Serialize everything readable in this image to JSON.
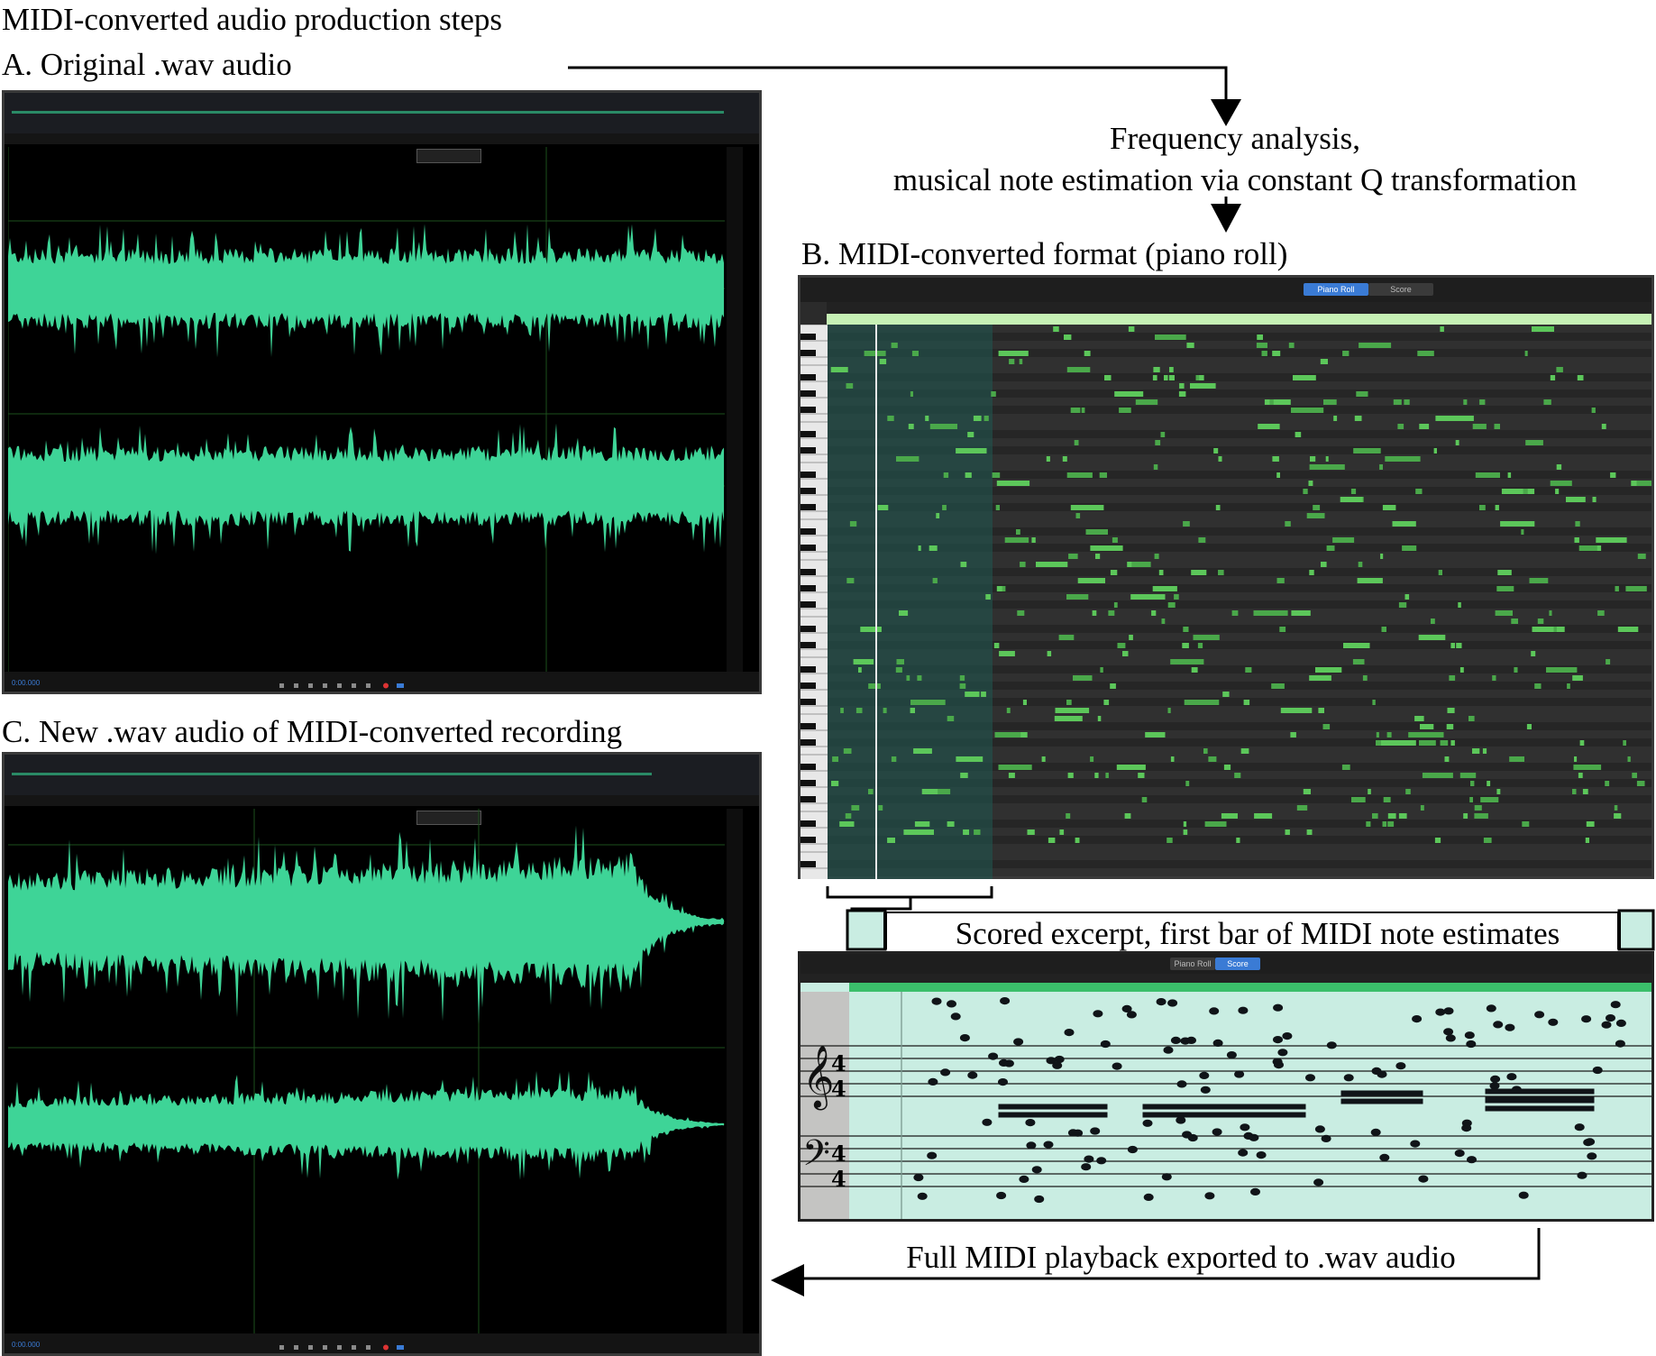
{
  "figure_title": "MIDI-converted audio production steps",
  "section_a": {
    "label": "A. Original .wav audio",
    "timecode": "0:00.000"
  },
  "section_b": {
    "label": "B. MIDI-converted format (piano roll)",
    "tab_piano_roll": "Piano Roll",
    "tab_score": "Score"
  },
  "section_c": {
    "label": "C. New .wav audio of MIDI-converted recording",
    "timecode": "0:00.000"
  },
  "analysis_line1": "Frequency analysis,",
  "analysis_line2": "musical note estimation via constant Q transformation",
  "excerpt_label": "Scored excerpt, first bar of MIDI note estimates",
  "playback_label": "Full MIDI playback exported to .wav audio",
  "score_tabs": {
    "piano_roll": "Piano Roll",
    "score": "Score"
  },
  "colors": {
    "waveform": "#3ed497",
    "roll_note": "#5cc75a",
    "roll_bg": "#2b2b2b",
    "highlight": "#c9ede2",
    "panel_bg": "#000000"
  }
}
